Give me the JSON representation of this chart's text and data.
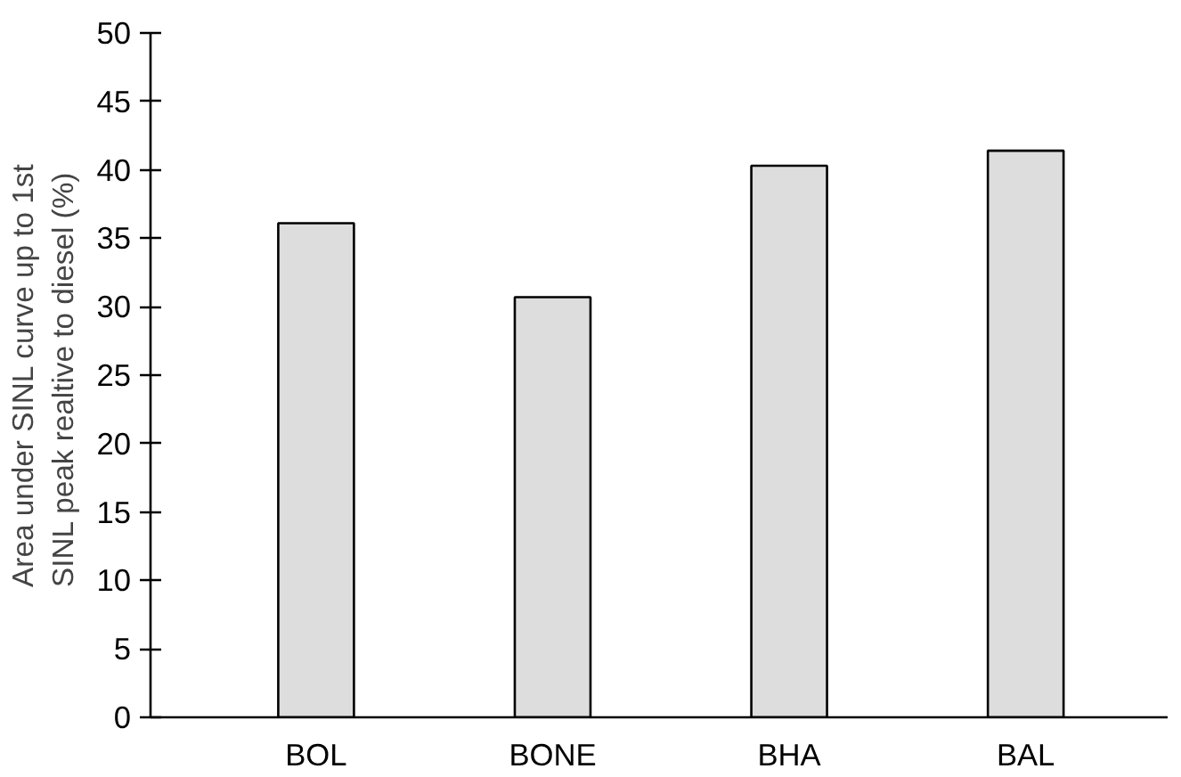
{
  "chart_data": {
    "type": "bar",
    "ylabel": "Area under SINL curve up to 1st\nSINL peak  realtive to diesel (%)",
    "categories": [
      "BOL",
      "BONE",
      "BHA",
      "BAL"
    ],
    "values": [
      36.1,
      30.7,
      40.3,
      41.4
    ],
    "color": "#dddddd",
    "ylim": [
      0,
      50
    ],
    "yticks": [
      0,
      5,
      10,
      15,
      20,
      25,
      30,
      35,
      40,
      45,
      50
    ],
    "grid": false
  }
}
